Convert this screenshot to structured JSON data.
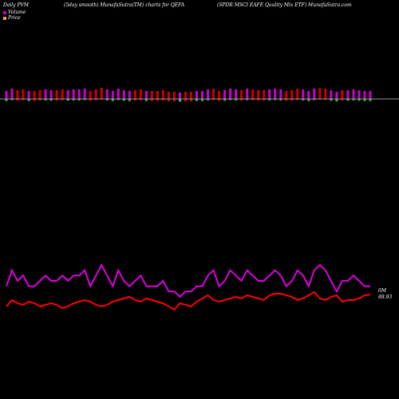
{
  "header": {
    "left": "Daily PVM",
    "mid": "(5day smooth) MunafaSutra(TM) charts for QEFA",
    "right": "(SPDR MSCI EAFE Quality Mix ETF) MunafaSutra.com"
  },
  "legend": [
    {
      "label": "Volume",
      "color": "#cc00cc"
    },
    {
      "label": "Price",
      "color": "#e8a33a"
    }
  ],
  "colors": {
    "volume_pos": "#cc00cc",
    "volume_neg": "#cc0000",
    "volume_green": "#33cc33",
    "volume_line": "#dd00dd",
    "price_line": "#ff0000",
    "baseline": "#999999"
  },
  "chart_data": {
    "type": "line",
    "x": [
      1,
      2,
      3,
      4,
      5,
      6,
      7,
      8,
      9,
      10,
      11,
      12,
      13,
      14,
      15,
      16,
      17,
      18,
      19,
      20,
      21,
      22,
      23,
      24,
      25,
      26,
      27,
      28,
      29,
      30,
      31,
      32,
      33,
      34,
      35,
      36,
      37,
      38,
      39,
      40,
      41,
      42,
      43,
      44,
      45,
      46,
      47,
      48,
      49,
      50,
      51,
      52,
      53,
      54,
      55,
      56,
      57,
      58,
      59,
      60,
      61,
      62,
      63,
      64,
      65,
      66
    ],
    "series": [
      {
        "name": "Volume",
        "values": [
          0.6,
          0.9,
          0.7,
          0.8,
          0.6,
          0.6,
          0.7,
          0.8,
          0.7,
          0.7,
          0.8,
          0.7,
          0.8,
          0.8,
          0.9,
          0.6,
          0.8,
          1.0,
          0.8,
          0.6,
          0.9,
          0.7,
          0.6,
          0.7,
          0.8,
          0.6,
          0.6,
          0.6,
          0.7,
          0.5,
          0.5,
          0.4,
          0.5,
          0.5,
          0.6,
          0.6,
          0.8,
          0.9,
          0.6,
          0.7,
          0.9,
          0.8,
          0.7,
          0.9,
          0.8,
          0.7,
          0.7,
          0.8,
          0.9,
          0.8,
          0.6,
          0.7,
          0.9,
          0.8,
          0.6,
          0.9,
          1.0,
          0.9,
          0.7,
          0.5,
          0.7,
          0.7,
          0.8,
          0.7,
          0.6,
          0.6
        ],
        "price": [
          88.2,
          88.6,
          88.4,
          88.3,
          88.5,
          88.4,
          88.2,
          88.3,
          88.4,
          88.3,
          88.1,
          88.2,
          88.4,
          88.5,
          88.6,
          88.5,
          88.3,
          88.2,
          88.3,
          88.5,
          88.6,
          88.7,
          88.8,
          88.6,
          88.5,
          88.7,
          88.6,
          88.5,
          88.4,
          88.2,
          88.0,
          88.4,
          88.3,
          88.2,
          88.5,
          88.7,
          88.9,
          88.6,
          88.5,
          88.6,
          88.7,
          88.8,
          88.7,
          88.9,
          88.8,
          88.7,
          88.6,
          88.9,
          89.0,
          89.0,
          88.9,
          88.8,
          88.6,
          88.7,
          88.9,
          89.1,
          88.7,
          88.6,
          88.8,
          88.9,
          88.5,
          88.6,
          88.6,
          88.7,
          88.9,
          88.95
        ]
      }
    ],
    "end_labels": {
      "volume": "0M",
      "price": "88.93"
    }
  }
}
